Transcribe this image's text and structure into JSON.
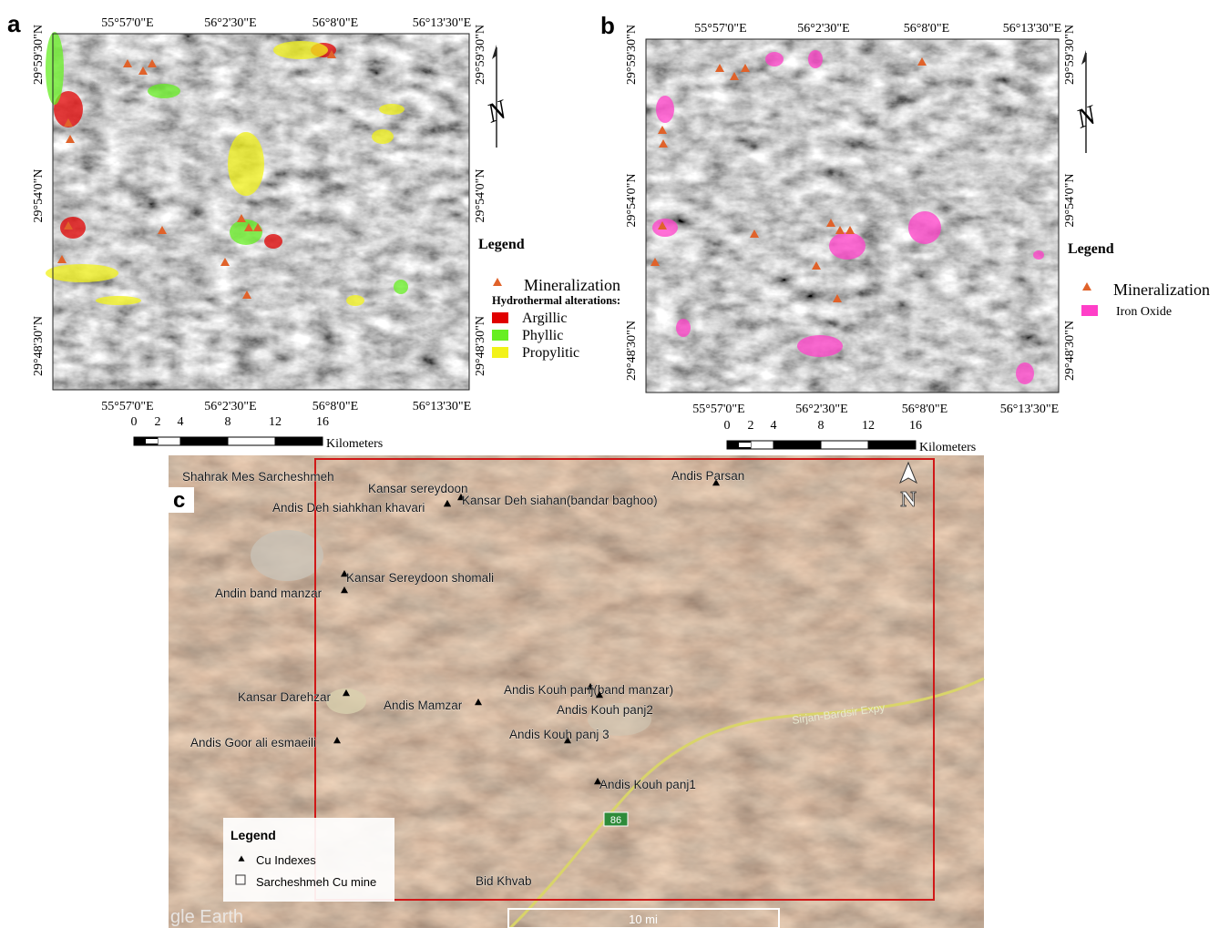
{
  "panels": [
    {
      "label": "a",
      "lon_labels": [
        "55°57'0\"E",
        "56°2'30\"E",
        "56°8'0\"E",
        "56°13'30\"E"
      ],
      "lat_labels": [
        "29°59'30\"N",
        "29°54'0\"N",
        "29°48'30\"N"
      ],
      "legend": {
        "title": "Legend",
        "mineralization": "Mineralization",
        "subtitle": "Hydrothermal alterations:",
        "classes": [
          {
            "name": "Argillic",
            "color": "#e00000"
          },
          {
            "name": "Phyllic",
            "color": "#66ee22"
          },
          {
            "name": "Propylitic",
            "color": "#f2f21a"
          }
        ]
      },
      "scale": {
        "ticks": [
          "0",
          "2",
          "4",
          "8",
          "12",
          "16"
        ],
        "unit": "Kilometers"
      },
      "north": "N"
    },
    {
      "label": "b",
      "lon_labels": [
        "55°57'0\"E",
        "56°2'30\"E",
        "56°8'0\"E",
        "56°13'30\"E"
      ],
      "lat_labels": [
        "29°59'30\"N",
        "29°54'0\"N",
        "29°48'30\"N"
      ],
      "legend": {
        "title": "Legend",
        "mineralization": "Mineralization",
        "classes": [
          {
            "name": "Iron Oxide",
            "color": "#ff3fc8"
          }
        ]
      },
      "scale": {
        "ticks": [
          "0",
          "2",
          "4",
          "8",
          "12",
          "16"
        ],
        "unit": "Kilometers"
      },
      "north": "N"
    }
  ],
  "panel_c": {
    "label": "c",
    "places": [
      "Shahrak Mes Sarcheshmeh",
      "Andis Parsan",
      "Kansar sereydoon",
      "Andis Deh siahkhan khavari",
      "Kansar Deh siahan(bandar baghoo)",
      "Kansar Sereydoon shomali",
      "Andin band manzar",
      "Kansar Darehzar",
      "Andis Mamzar",
      "Andis Kouh panj(band manzar)",
      "Andis Kouh panj2",
      "Andis Kouh panj 3",
      "Andis Goor ali esmaeili",
      "Andis Kouh panj1",
      "Bid Khvab"
    ],
    "road_label": "Sirjan-Bardsir Expy",
    "road_number": "86",
    "north": "N",
    "legend": {
      "title": "Legend",
      "items": [
        "Cu Indexes",
        "Sarcheshmeh Cu mine"
      ]
    },
    "scale_label": "10 mi",
    "watermark": "gle Earth"
  }
}
